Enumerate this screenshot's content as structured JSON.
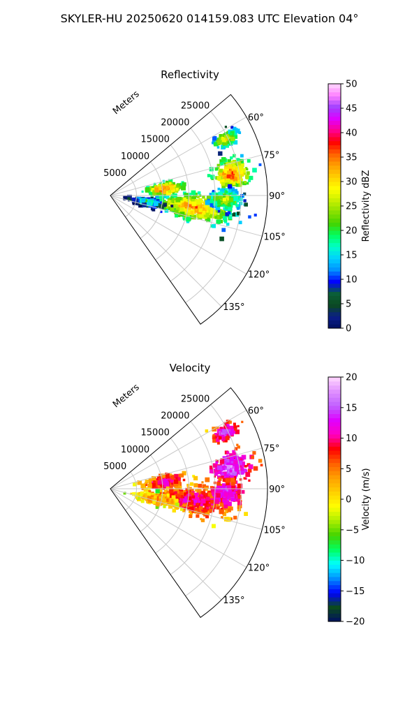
{
  "figure_title": "SKYLER-HU  20250620  014159.083 UTC Elevation 04°",
  "radial_unit_label": "Meters",
  "colors": {
    "refl_stops": [
      "#001060",
      "#0b1e8a",
      "#0b4a1e",
      "#0b5e3a",
      "#0000ff",
      "#0090ff",
      "#00d0ff",
      "#00ffc8",
      "#00ff60",
      "#44d400",
      "#88e000",
      "#c8f000",
      "#ffff00",
      "#ffd000",
      "#ffa000",
      "#ff6000",
      "#ff0000",
      "#ff0090",
      "#e000ff",
      "#a040ff",
      "#ff80ff",
      "#ffd8ff"
    ],
    "vel_stops": [
      "#001060",
      "#0b4a1e",
      "#0000ff",
      "#0090ff",
      "#00ffff",
      "#00ff60",
      "#44d400",
      "#aaee00",
      "#ffff00",
      "#ffd000",
      "#ffa000",
      "#ff6000",
      "#ff0000",
      "#ff00c0",
      "#e000ff",
      "#c060ff",
      "#e090ff",
      "#ffd8ff"
    ]
  },
  "chart_data": [
    {
      "type": "heatmap",
      "projection": "polar-sector",
      "title": "Reflectivity",
      "azimuth_range_deg": [
        50,
        145
      ],
      "azimuth_ticks_deg": [
        60,
        75,
        90,
        105,
        120,
        135
      ],
      "azimuth_tick_labels": [
        "60°",
        "75°",
        "90°",
        "105°",
        "120°",
        "135°"
      ],
      "range_m": [
        0,
        30000
      ],
      "range_ticks_m": [
        5000,
        10000,
        15000,
        20000,
        25000
      ],
      "range_tick_labels": [
        "5000",
        "10000",
        "15000",
        "20000",
        "25000"
      ],
      "grid": true,
      "colorbar": {
        "label": "Reflectivity dBZ",
        "range": [
          0,
          50
        ],
        "ticks": [
          0,
          5,
          10,
          15,
          20,
          25,
          30,
          35,
          40,
          45,
          50
        ],
        "tick_labels": [
          "0",
          "5",
          "10",
          "15",
          "20",
          "25",
          "30",
          "35",
          "40",
          "45",
          "50"
        ]
      },
      "cells": [
        {
          "az_deg": 83,
          "range_m": 10500,
          "value": 38,
          "spread_az_deg": 6,
          "spread_range_m": 3200
        },
        {
          "az_deg": 98,
          "range_m": 16000,
          "value": 36,
          "spread_az_deg": 8,
          "spread_range_m": 7000
        },
        {
          "az_deg": 80,
          "range_m": 23500,
          "value": 38,
          "spread_az_deg": 6,
          "spread_range_m": 3500
        },
        {
          "az_deg": 64,
          "range_m": 24500,
          "value": 32,
          "spread_az_deg": 3,
          "spread_range_m": 2500
        },
        {
          "az_deg": 100,
          "range_m": 7000,
          "value": 22,
          "spread_az_deg": 6,
          "spread_range_m": 3000
        },
        {
          "az_deg": 92,
          "range_m": 22000,
          "value": 30,
          "spread_az_deg": 5,
          "spread_range_m": 3000
        }
      ]
    },
    {
      "type": "heatmap",
      "projection": "polar-sector",
      "title": "Velocity",
      "azimuth_range_deg": [
        50,
        145
      ],
      "azimuth_ticks_deg": [
        60,
        75,
        90,
        105,
        120,
        135
      ],
      "azimuth_tick_labels": [
        "60°",
        "75°",
        "90°",
        "105°",
        "120°",
        "135°"
      ],
      "range_m": [
        0,
        30000
      ],
      "range_ticks_m": [
        5000,
        10000,
        15000,
        20000,
        25000
      ],
      "range_tick_labels": [
        "5000",
        "10000",
        "15000",
        "20000",
        "25000"
      ],
      "grid": true,
      "colorbar": {
        "label": "Velocity (m/s)",
        "range": [
          -20,
          20
        ],
        "ticks": [
          -20,
          -15,
          -10,
          -5,
          0,
          5,
          10,
          15,
          20
        ],
        "tick_labels": [
          "−20",
          "−15",
          "−10",
          "−5",
          "0",
          "5",
          "10",
          "15",
          "20"
        ]
      },
      "cells": [
        {
          "az_deg": 83,
          "range_m": 10500,
          "value": 12,
          "spread_az_deg": 6,
          "spread_range_m": 3200
        },
        {
          "az_deg": 98,
          "range_m": 16000,
          "value": 11,
          "spread_az_deg": 8,
          "spread_range_m": 7000
        },
        {
          "az_deg": 80,
          "range_m": 23500,
          "value": 16,
          "spread_az_deg": 6,
          "spread_range_m": 3500
        },
        {
          "az_deg": 64,
          "range_m": 24500,
          "value": 15,
          "spread_az_deg": 3,
          "spread_range_m": 2500
        },
        {
          "az_deg": 103,
          "range_m": 9000,
          "value": 6,
          "spread_az_deg": 6,
          "spread_range_m": 4000
        },
        {
          "az_deg": 92,
          "range_m": 22000,
          "value": 15,
          "spread_az_deg": 5,
          "spread_range_m": 3000
        }
      ]
    }
  ]
}
